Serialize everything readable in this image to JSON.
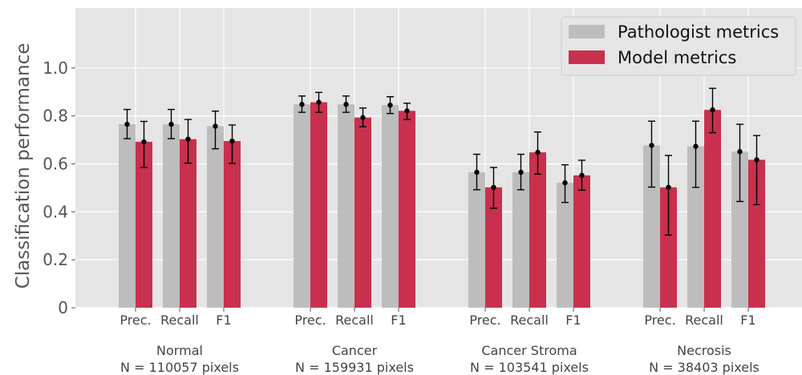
{
  "chart_data": {
    "type": "bar",
    "title": "",
    "ylabel": "Classification performance",
    "ylim": [
      0,
      1.25
    ],
    "yticks": [
      "0",
      "0.2",
      "0.4",
      "0.6",
      "0.8",
      "1.0"
    ],
    "grid": true,
    "legend_position": "top-right",
    "groups": [
      {
        "name": "Normal",
        "subtitle": "N = 110057 pixels"
      },
      {
        "name": "Cancer",
        "subtitle": "N = 159931 pixels"
      },
      {
        "name": "Cancer Stroma",
        "subtitle": "N = 103541 pixels"
      },
      {
        "name": "Necrosis",
        "subtitle": "N = 38403 pixels"
      }
    ],
    "metrics": [
      "Prec.",
      "Recall",
      "F1"
    ],
    "series": [
      {
        "name": "Pathologist metrics",
        "color": "#bdbdbd",
        "values": [
          [
            0.765,
            0.765,
            0.757
          ],
          [
            0.848,
            0.848,
            0.845
          ],
          [
            0.565,
            0.565,
            0.521
          ],
          [
            0.677,
            0.673,
            0.651
          ]
        ],
        "error_low": [
          [
            0.705,
            0.705,
            0.663
          ],
          [
            0.815,
            0.815,
            0.81
          ],
          [
            0.492,
            0.492,
            0.439
          ],
          [
            0.503,
            0.502,
            0.443
          ]
        ],
        "error_high": [
          [
            0.827,
            0.827,
            0.82
          ],
          [
            0.883,
            0.883,
            0.88
          ],
          [
            0.64,
            0.64,
            0.596
          ],
          [
            0.778,
            0.778,
            0.765
          ]
        ]
      },
      {
        "name": "Model metrics",
        "color": "#c8304e",
        "values": [
          [
            0.692,
            0.703,
            0.695
          ],
          [
            0.857,
            0.793,
            0.821
          ],
          [
            0.502,
            0.648,
            0.552
          ],
          [
            0.502,
            0.825,
            0.617
          ]
        ],
        "error_low": [
          [
            0.585,
            0.603,
            0.602
          ],
          [
            0.815,
            0.755,
            0.785
          ],
          [
            0.415,
            0.557,
            0.49
          ],
          [
            0.303,
            0.73,
            0.43
          ]
        ],
        "error_high": [
          [
            0.777,
            0.785,
            0.762
          ],
          [
            0.898,
            0.833,
            0.853
          ],
          [
            0.585,
            0.733,
            0.615
          ],
          [
            0.635,
            0.915,
            0.718
          ]
        ]
      }
    ]
  }
}
